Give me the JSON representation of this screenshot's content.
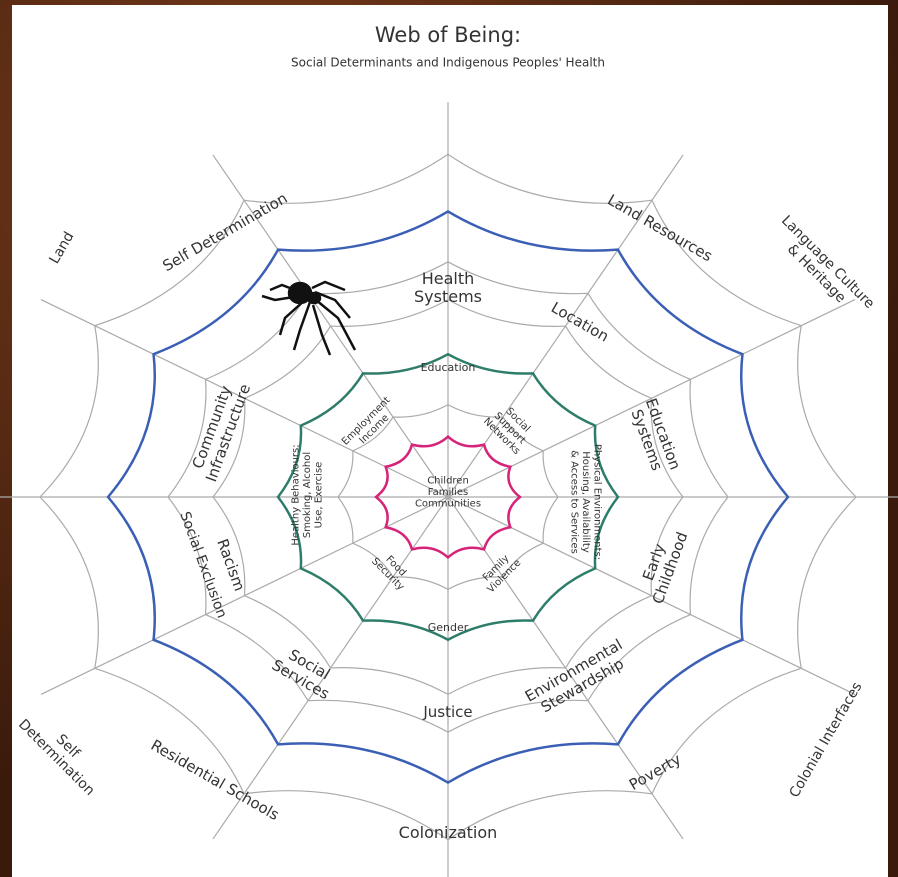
{
  "header": {
    "title": "Web of Being:",
    "subtitle": "Social Determinants and Indigenous Peoples' Health"
  },
  "labels": [
    {
      "lines": [
        "Land"
      ]
    },
    {
      "lines": [
        "Self Determination"
      ]
    },
    {
      "lines": [
        "Land Resources"
      ]
    },
    {
      "lines": [
        "Language Culture",
        "& Heritage"
      ]
    },
    {
      "lines": [
        "Self",
        "Determination"
      ]
    },
    {
      "lines": [
        "Residential Schools"
      ]
    },
    {
      "lines": [
        "Colonization"
      ]
    },
    {
      "lines": [
        "Poverty"
      ]
    },
    {
      "lines": [
        "Colonial Interfaces"
      ]
    },
    {
      "lines": [
        "Health",
        "Systems"
      ]
    },
    {
      "lines": [
        "Location"
      ]
    },
    {
      "lines": [
        "Education",
        "Systems"
      ]
    },
    {
      "lines": [
        "Early",
        "Childhood"
      ]
    },
    {
      "lines": [
        "Environmental",
        "Stewardship"
      ]
    },
    {
      "lines": [
        "Justice"
      ]
    },
    {
      "lines": [
        "Social",
        "Services"
      ]
    },
    {
      "lines": [
        "Racism"
      ]
    },
    {
      "lines": [
        "Social Exclusion"
      ]
    },
    {
      "lines": [
        "Community",
        "Infrastructure"
      ]
    },
    {
      "lines": [
        "Education"
      ]
    },
    {
      "lines": [
        "Social",
        "Support",
        "Networks"
      ]
    },
    {
      "lines": [
        "Physical Environments:",
        "Housing, Availability",
        "& Access to Services"
      ]
    },
    {
      "lines": [
        "Family",
        "Violence"
      ]
    },
    {
      "lines": [
        "Gender"
      ]
    },
    {
      "lines": [
        "Food",
        "Security"
      ]
    },
    {
      "lines": [
        "Healthy Behaviours:",
        "Smoking, Alcohol",
        "Use, Exercise"
      ]
    },
    {
      "lines": [
        "Employment",
        "Income"
      ]
    },
    {
      "lines": [
        "Children",
        "Families",
        "Communities"
      ]
    }
  ]
}
